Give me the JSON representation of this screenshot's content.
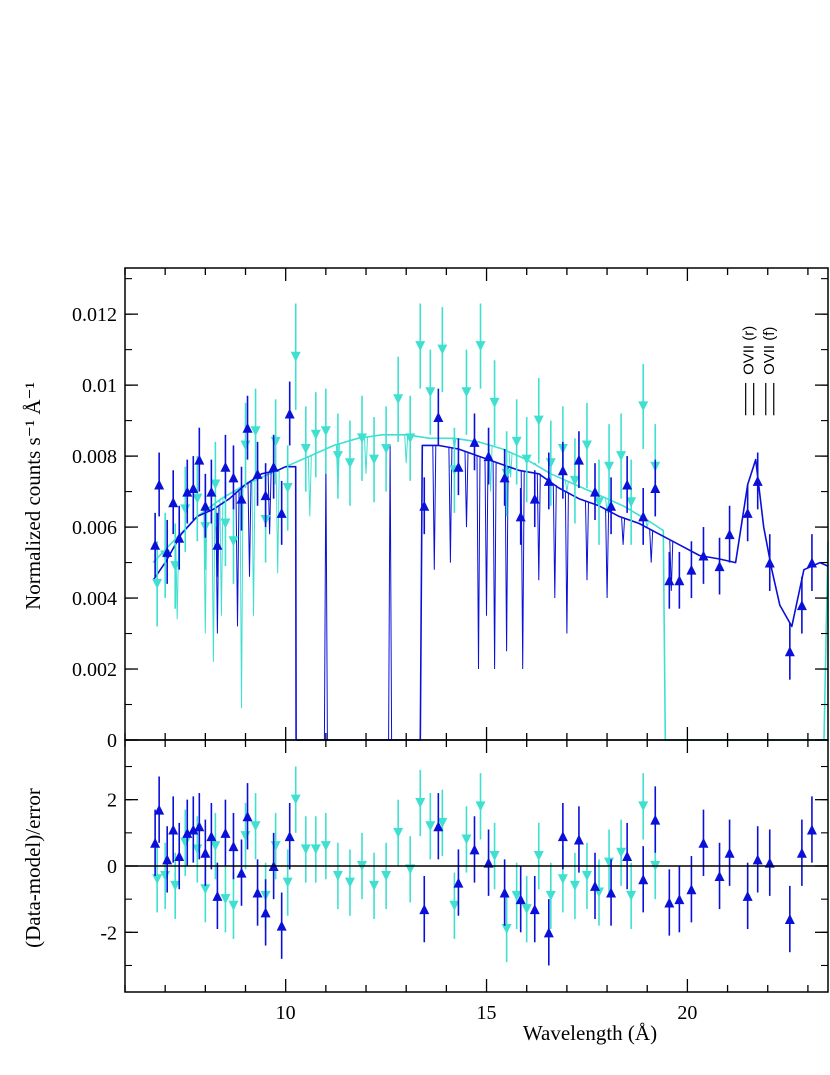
{
  "chart_data": [
    {
      "type": "line",
      "panel": "spectrum",
      "xlabel": "Wavelength (Å)",
      "ylabel": "Normalized counts s⁻¹ Å⁻¹",
      "xlim": [
        6.0,
        23.5
      ],
      "ylim": [
        0,
        0.0133
      ],
      "yticks": [
        {
          "v": 0,
          "label": "0"
        },
        {
          "v": 0.002,
          "label": "0.002"
        },
        {
          "v": 0.004,
          "label": "0.004"
        },
        {
          "v": 0.006,
          "label": "0.006"
        },
        {
          "v": 0.008,
          "label": "0.008"
        },
        {
          "v": 0.01,
          "label": "0.01"
        },
        {
          "v": 0.012,
          "label": "0.012"
        }
      ],
      "annotations": [
        {
          "text": "OVII (r)",
          "x": 21.6,
          "y_top": 0.0104,
          "y_bottom": 0.0096
        },
        {
          "text": "OVII (f)",
          "x": 22.1,
          "y_top": 0.0104,
          "y_bottom": 0.0096
        }
      ],
      "colors": {
        "series_a": "#0a10d8",
        "series_b": "#40e0d0"
      },
      "series": [
        {
          "key": "a_model",
          "x": [
            6.7,
            7.0,
            7.4,
            7.8,
            8.2,
            8.6,
            9.0,
            9.4,
            9.8,
            10.0,
            10.25,
            10.26,
            13.35,
            13.4,
            13.8,
            14.3,
            14.8,
            15.3,
            15.8,
            16.3,
            16.8,
            17.3,
            17.8,
            18.3,
            18.8,
            19.3,
            19.8,
            20.3,
            20.8,
            21.2,
            21.5,
            21.7,
            21.9,
            22.1,
            22.3,
            22.6,
            22.9,
            23.3,
            23.5
          ],
          "y": [
            0.0045,
            0.005,
            0.0058,
            0.0063,
            0.0065,
            0.0068,
            0.0072,
            0.0075,
            0.0076,
            0.0077,
            0.0077,
            0,
            0,
            0.0083,
            0.0083,
            0.0082,
            0.008,
            0.0078,
            0.0076,
            0.0075,
            0.0071,
            0.0068,
            0.0066,
            0.0063,
            0.0061,
            0.0058,
            0.0055,
            0.0052,
            0.0051,
            0.005,
            0.0072,
            0.0079,
            0.006,
            0.0048,
            0.0038,
            0.0032,
            0.0048,
            0.005,
            0.0049
          ]
        },
        {
          "key": "b_model",
          "x": [
            6.7,
            7.2,
            7.8,
            8.4,
            9.0,
            9.6,
            10.0,
            10.6,
            11.2,
            11.8,
            12.4,
            13.0,
            13.6,
            14.2,
            14.8,
            15.4,
            16.0,
            16.6,
            17.2,
            17.8,
            18.4,
            19.0,
            19.4,
            19.45,
            23.4,
            23.5
          ],
          "y": [
            0.005,
            0.0056,
            0.0063,
            0.0068,
            0.0072,
            0.0075,
            0.0077,
            0.008,
            0.0083,
            0.0085,
            0.0086,
            0.0086,
            0.0085,
            0.0085,
            0.0084,
            0.0082,
            0.0079,
            0.0075,
            0.0072,
            0.0069,
            0.0066,
            0.0062,
            0.0059,
            0,
            0,
            0.0056
          ]
        },
        {
          "key": "a_dips",
          "x": [
            8.3,
            8.8,
            9.1,
            9.6,
            11.0,
            12.6,
            13.7,
            14.1,
            14.5,
            14.8,
            15.0,
            15.2,
            15.5,
            15.9,
            16.3,
            16.7,
            17.0,
            17.5,
            18.0,
            18.4,
            19.1,
            19.6
          ],
          "y": [
            0.003,
            0.0032,
            0.0046,
            0.0058,
            0.0079,
            0.0083,
            0.0048,
            0.005,
            0.006,
            0.002,
            0.0035,
            0.002,
            0.0025,
            0.002,
            0.0045,
            0.004,
            0.003,
            0.0045,
            0.004,
            0.0055,
            0.005,
            0.0042
          ]
        },
        {
          "key": "b_dips",
          "x": [
            7.3,
            8.0,
            8.2,
            8.4,
            8.9,
            9.2,
            9.8,
            10.6,
            11.3,
            12.0,
            13.0,
            14.2,
            15.1,
            15.6,
            16.2,
            17.0,
            18.0,
            19.0
          ],
          "y": [
            0.0034,
            0.003,
            0.0022,
            0.0035,
            0.0009,
            0.0035,
            0.0047,
            0.0063,
            0.007,
            0.0075,
            0.0078,
            0.0082,
            0.007,
            0.0074,
            0.0078,
            0.007,
            0.0064,
            0.006
          ]
        },
        {
          "key": "a_data",
          "x": [
            6.75,
            6.85,
            7.05,
            7.2,
            7.35,
            7.55,
            7.7,
            7.85,
            8.0,
            8.15,
            8.3,
            8.5,
            8.7,
            8.9,
            9.05,
            9.3,
            9.5,
            9.7,
            9.9,
            10.1,
            13.45,
            13.8,
            14.3,
            14.7,
            15.05,
            15.45,
            15.85,
            16.2,
            16.55,
            16.9,
            17.3,
            17.7,
            18.1,
            18.5,
            18.9,
            19.2,
            19.55,
            19.8,
            20.1,
            20.4,
            20.8,
            21.05,
            21.5,
            21.75,
            22.05,
            22.55,
            22.85,
            23.1
          ],
          "y": [
            0.0055,
            0.0072,
            0.0053,
            0.0067,
            0.0057,
            0.007,
            0.0071,
            0.0079,
            0.0066,
            0.007,
            0.0055,
            0.0077,
            0.0074,
            0.0068,
            0.0088,
            0.0075,
            0.0069,
            0.0077,
            0.0064,
            0.0092,
            0.0066,
            0.0091,
            0.0077,
            0.0084,
            0.008,
            0.0074,
            0.0063,
            0.0068,
            0.0073,
            0.0076,
            0.0079,
            0.007,
            0.0066,
            0.0072,
            0.0063,
            0.0071,
            0.0045,
            0.0045,
            0.0048,
            0.0052,
            0.0049,
            0.0058,
            0.0064,
            0.0073,
            0.005,
            0.0025,
            0.0038,
            0.005
          ],
          "err": [
            0.0009,
            0.0009,
            0.0009,
            0.0009,
            0.0009,
            0.0009,
            0.0009,
            0.0009,
            0.0009,
            0.0009,
            0.0009,
            0.0009,
            0.0009,
            0.0009,
            0.0009,
            0.0009,
            0.0009,
            0.0009,
            0.0009,
            0.0009,
            0.0008,
            0.0008,
            0.0008,
            0.0008,
            0.0008,
            0.0008,
            0.0008,
            0.0008,
            0.0008,
            0.0008,
            0.0008,
            0.0008,
            0.0008,
            0.0008,
            0.0008,
            0.0008,
            0.0008,
            0.0008,
            0.0008,
            0.0008,
            0.0008,
            0.0008,
            0.0008,
            0.0008,
            0.0008,
            0.0008,
            0.0008,
            0.0008
          ]
        },
        {
          "key": "b_data",
          "x": [
            6.8,
            7.0,
            7.25,
            7.5,
            7.8,
            8.0,
            8.25,
            8.5,
            8.7,
            9.0,
            9.25,
            9.5,
            9.75,
            10.05,
            10.25,
            10.5,
            10.75,
            11.0,
            11.3,
            11.6,
            11.9,
            12.2,
            12.5,
            12.8,
            13.1,
            13.35,
            13.6,
            13.9,
            14.2,
            14.5,
            14.85,
            15.2,
            15.5,
            15.75,
            16.0,
            16.3,
            16.6,
            16.9,
            17.2,
            17.5,
            17.8,
            18.05,
            18.35,
            18.6,
            18.9,
            19.2
          ],
          "y": [
            0.0044,
            0.0052,
            0.0049,
            0.0065,
            0.0068,
            0.006,
            0.0072,
            0.0061,
            0.0056,
            0.0083,
            0.0087,
            0.0062,
            0.0084,
            0.0071,
            0.0108,
            0.0082,
            0.0086,
            0.0087,
            0.008,
            0.0078,
            0.0085,
            0.0079,
            0.0082,
            0.0096,
            0.0085,
            0.0111,
            0.0098,
            0.011,
            0.0076,
            0.0098,
            0.0111,
            0.0095,
            0.0075,
            0.0084,
            0.0079,
            0.009,
            0.0078,
            0.0082,
            0.0073,
            0.0083,
            0.0067,
            0.0077,
            0.008,
            0.0067,
            0.0094,
            0.0077
          ],
          "err": [
            0.0012,
            0.0012,
            0.0012,
            0.0012,
            0.0012,
            0.0012,
            0.0012,
            0.0012,
            0.0012,
            0.0012,
            0.0012,
            0.0012,
            0.0012,
            0.0012,
            0.0015,
            0.0012,
            0.0012,
            0.0012,
            0.0012,
            0.0012,
            0.0012,
            0.0012,
            0.0012,
            0.0012,
            0.0012,
            0.0012,
            0.0012,
            0.0012,
            0.0012,
            0.0012,
            0.0012,
            0.0012,
            0.0012,
            0.0012,
            0.0012,
            0.0012,
            0.0012,
            0.0012,
            0.0012,
            0.0012,
            0.0012,
            0.0012,
            0.0012,
            0.0012,
            0.0012,
            0.0012
          ]
        }
      ]
    },
    {
      "type": "scatter",
      "panel": "residuals",
      "xlabel": "Wavelength (Å)",
      "ylabel": "(Data-model)/error",
      "xlim": [
        6.0,
        23.5
      ],
      "ylim": [
        -3.8,
        3.8
      ],
      "xticks": [
        {
          "v": 10,
          "label": "10"
        },
        {
          "v": 15,
          "label": "15"
        },
        {
          "v": 20,
          "label": "20"
        }
      ],
      "yticks": [
        {
          "v": -2,
          "label": "-2"
        },
        {
          "v": 0,
          "label": "0"
        },
        {
          "v": 2,
          "label": "2"
        }
      ],
      "series": [
        {
          "key": "a_resid",
          "x": [
            6.75,
            6.85,
            7.05,
            7.2,
            7.35,
            7.55,
            7.7,
            7.85,
            8.0,
            8.15,
            8.3,
            8.5,
            8.7,
            8.9,
            9.05,
            9.3,
            9.5,
            9.7,
            9.9,
            10.1,
            13.45,
            13.8,
            14.3,
            14.7,
            15.05,
            15.45,
            15.85,
            16.2,
            16.55,
            16.9,
            17.3,
            17.7,
            18.1,
            18.5,
            18.9,
            19.2,
            19.55,
            19.8,
            20.1,
            20.4,
            20.8,
            21.05,
            21.5,
            21.75,
            22.05,
            22.55,
            22.85,
            23.1
          ],
          "y": [
            0.7,
            1.7,
            0.2,
            1.1,
            0.3,
            1.0,
            1.1,
            1.2,
            0.4,
            0.9,
            -0.9,
            1.0,
            0.6,
            -0.2,
            1.5,
            -0.8,
            -1.4,
            0.0,
            -1.8,
            0.9,
            -1.3,
            1.2,
            -0.5,
            0.5,
            0.1,
            -0.8,
            -1.0,
            -1.3,
            -2.0,
            0.9,
            0.8,
            -0.6,
            -0.8,
            0.3,
            -0.4,
            1.4,
            -1.1,
            -1.0,
            -0.7,
            0.7,
            -0.3,
            0.4,
            -0.9,
            0.2,
            0.1,
            -1.6,
            0.4,
            1.1
          ],
          "err": [
            1,
            1,
            1,
            1,
            1,
            1,
            1,
            1,
            1,
            1,
            1,
            1,
            1,
            1,
            1,
            1,
            1,
            1,
            1,
            1,
            1,
            1,
            1,
            1,
            1,
            1,
            1,
            1,
            1,
            1,
            1,
            1,
            1,
            1,
            1,
            1,
            1,
            1,
            1,
            1,
            1,
            1,
            1,
            1,
            1,
            1,
            1,
            1
          ]
        },
        {
          "key": "b_resid",
          "x": [
            6.8,
            7.0,
            7.25,
            7.5,
            7.8,
            8.0,
            8.25,
            8.5,
            8.7,
            9.0,
            9.25,
            9.5,
            9.75,
            10.05,
            10.25,
            10.5,
            10.75,
            11.0,
            11.3,
            11.6,
            11.9,
            12.2,
            12.5,
            12.8,
            13.1,
            13.35,
            13.6,
            13.9,
            14.2,
            14.5,
            14.85,
            15.2,
            15.5,
            15.75,
            16.0,
            16.3,
            16.6,
            16.9,
            17.2,
            17.5,
            17.8,
            18.05,
            18.35,
            18.6,
            18.9,
            19.2
          ],
          "y": [
            -0.4,
            -0.3,
            -0.6,
            0.7,
            0.5,
            -0.7,
            0.6,
            -1.0,
            -1.2,
            0.9,
            1.2,
            -0.9,
            0.6,
            -0.5,
            2.0,
            0.5,
            0.5,
            0.6,
            -0.3,
            -0.5,
            0.0,
            -0.6,
            -0.3,
            1.0,
            -0.1,
            1.9,
            1.2,
            1.3,
            -1.2,
            0.8,
            1.8,
            0.3,
            -1.9,
            -0.9,
            -1.3,
            0.3,
            -0.9,
            -0.4,
            -0.6,
            -0.3,
            -0.8,
            0.1,
            0.4,
            -0.9,
            1.8,
            0.0
          ],
          "err": [
            1,
            1,
            1,
            1,
            1,
            1,
            1,
            1,
            1,
            1,
            1,
            1,
            1,
            1,
            1,
            1,
            1,
            1,
            1,
            1,
            1,
            1,
            1,
            1,
            1,
            1,
            1,
            1,
            1,
            1,
            1,
            1,
            1,
            1,
            1,
            1,
            1,
            1,
            1,
            1,
            1,
            1,
            1,
            1,
            1,
            1
          ]
        }
      ]
    }
  ]
}
